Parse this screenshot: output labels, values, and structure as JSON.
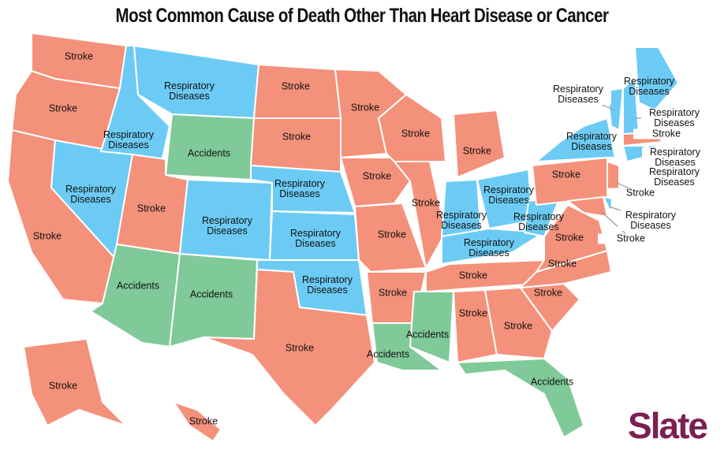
{
  "title": "Most Common Cause of Death Other Than Heart Disease or Cancer",
  "brand": "Slate",
  "colors": {
    "Stroke": "#f4917b",
    "Respiratory Diseases": "#6ccbf4",
    "Accidents": "#7fca98"
  },
  "regions": [
    "Stroke",
    "Stroke",
    "Stroke",
    "Respiratory Diseases",
    "Respiratory Diseases",
    "Respiratory Diseases",
    "Accidents",
    "Stroke",
    "Respiratory Diseases",
    "Accidents",
    "Accidents",
    "Stroke",
    "Stroke",
    "Respiratory Diseases",
    "Respiratory Diseases",
    "Respiratory Diseases",
    "Stroke",
    "Stroke",
    "Stroke",
    "Stroke",
    "Stroke",
    "Accidents",
    "Stroke",
    "Stroke",
    "Stroke",
    "Respiratory Diseases",
    "Respiratory Diseases",
    "Respiratory Diseases",
    "Respiratory Diseases",
    "Stroke",
    "Accidents",
    "Stroke",
    "Stroke",
    "Accidents",
    "Stroke",
    "Stroke",
    "Stroke",
    "Stroke",
    "Respiratory Diseases",
    "Respiratory Diseases",
    "Respiratory Diseases",
    "Respiratory Diseases",
    "Stroke",
    "Respiratory Diseases",
    "Respiratory Diseases",
    "Stroke",
    "Respiratory Diseases",
    "Stroke",
    "Stroke",
    "Stroke"
  ]
}
